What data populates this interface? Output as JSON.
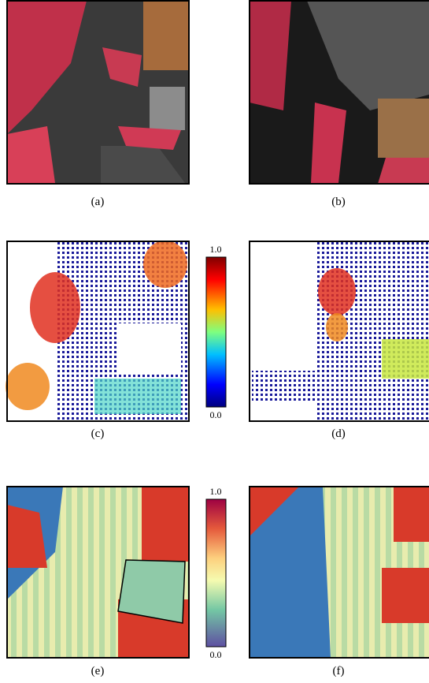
{
  "captions": [
    "(a)",
    "(b)",
    "(c)",
    "(d)",
    "(e)",
    "(f)"
  ],
  "colorbars": [
    {
      "top": "1.0",
      "bottom": "0.0"
    },
    {
      "top": "1.0",
      "bottom": "0.0"
    }
  ]
}
